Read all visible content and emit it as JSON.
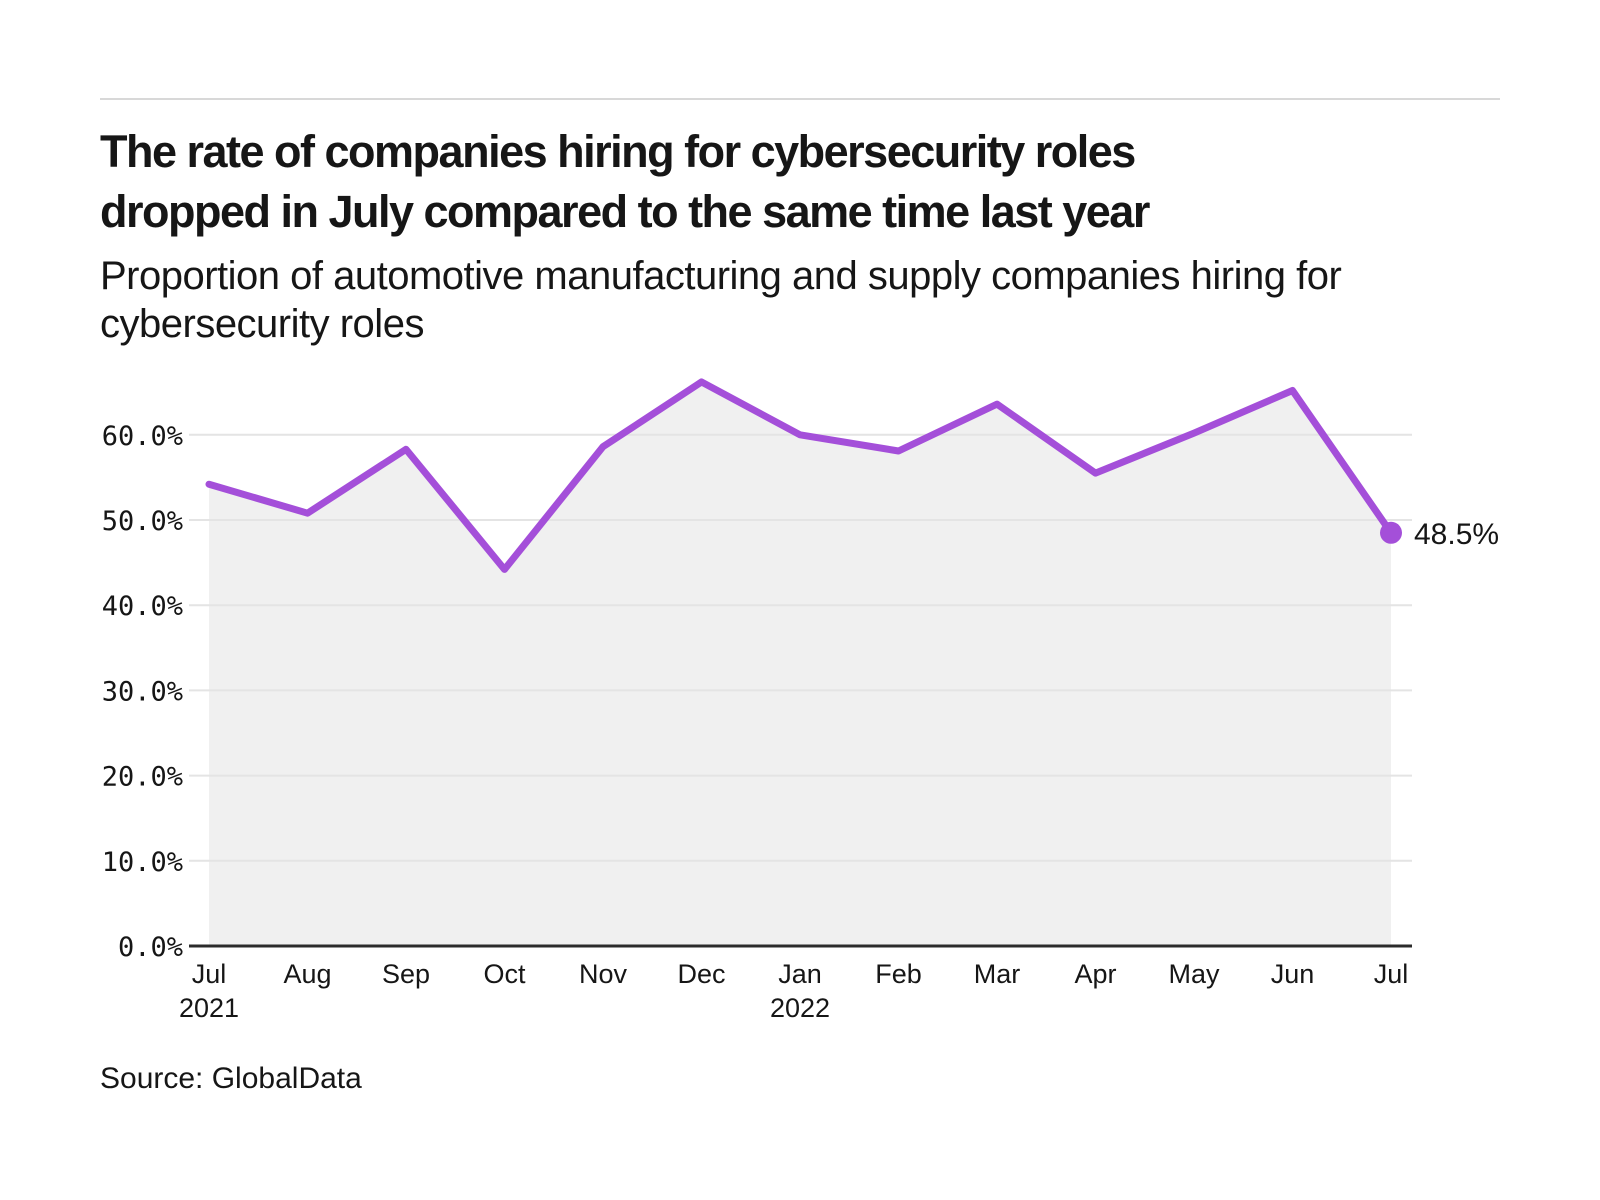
{
  "header": {
    "title_line1": "The rate of companies hiring for cybersecurity roles",
    "title_line2": "dropped in July compared to the same time last year",
    "subtitle_line1": "Proportion of automotive manufacturing and supply companies hiring for",
    "subtitle_line2": "cybersecurity roles"
  },
  "footer": {
    "source": "Source: GlobalData"
  },
  "colors": {
    "line": "#a44fd9",
    "end_dot": "#a44fd9",
    "area_fill": "#f0f0f0",
    "gridline": "#e4e4e4",
    "axis_line": "#2b2b2b",
    "text": "#161616",
    "top_rule": "#d8d8d8"
  },
  "chart_data": {
    "type": "area",
    "title": "The rate of companies hiring for cybersecurity roles dropped in July compared to the same time last year",
    "subtitle": "Proportion of automotive manufacturing and supply companies hiring for cybersecurity roles",
    "x": [
      {
        "month": "Jul",
        "year": "2021"
      },
      {
        "month": "Aug",
        "year": ""
      },
      {
        "month": "Sep",
        "year": ""
      },
      {
        "month": "Oct",
        "year": ""
      },
      {
        "month": "Nov",
        "year": ""
      },
      {
        "month": "Dec",
        "year": ""
      },
      {
        "month": "Jan",
        "year": "2022"
      },
      {
        "month": "Feb",
        "year": ""
      },
      {
        "month": "Mar",
        "year": ""
      },
      {
        "month": "Apr",
        "year": ""
      },
      {
        "month": "May",
        "year": ""
      },
      {
        "month": "Jun",
        "year": ""
      },
      {
        "month": "Jul",
        "year": ""
      }
    ],
    "values": [
      54.2,
      50.8,
      58.3,
      44.2,
      58.6,
      66.2,
      60.0,
      58.1,
      63.6,
      55.5,
      60.2,
      65.2,
      48.5
    ],
    "unit": "%",
    "y_ticks": [
      {
        "value": 0,
        "label": "0.0%"
      },
      {
        "value": 10,
        "label": "10.0%"
      },
      {
        "value": 20,
        "label": "20.0%"
      },
      {
        "value": 30,
        "label": "30.0%"
      },
      {
        "value": 40,
        "label": "40.0%"
      },
      {
        "value": 50,
        "label": "50.0%"
      },
      {
        "value": 60,
        "label": "60.0%"
      }
    ],
    "ylim": [
      0,
      68
    ],
    "grid": "horizontal",
    "legend": "none",
    "end_annotation": "48.5%"
  }
}
